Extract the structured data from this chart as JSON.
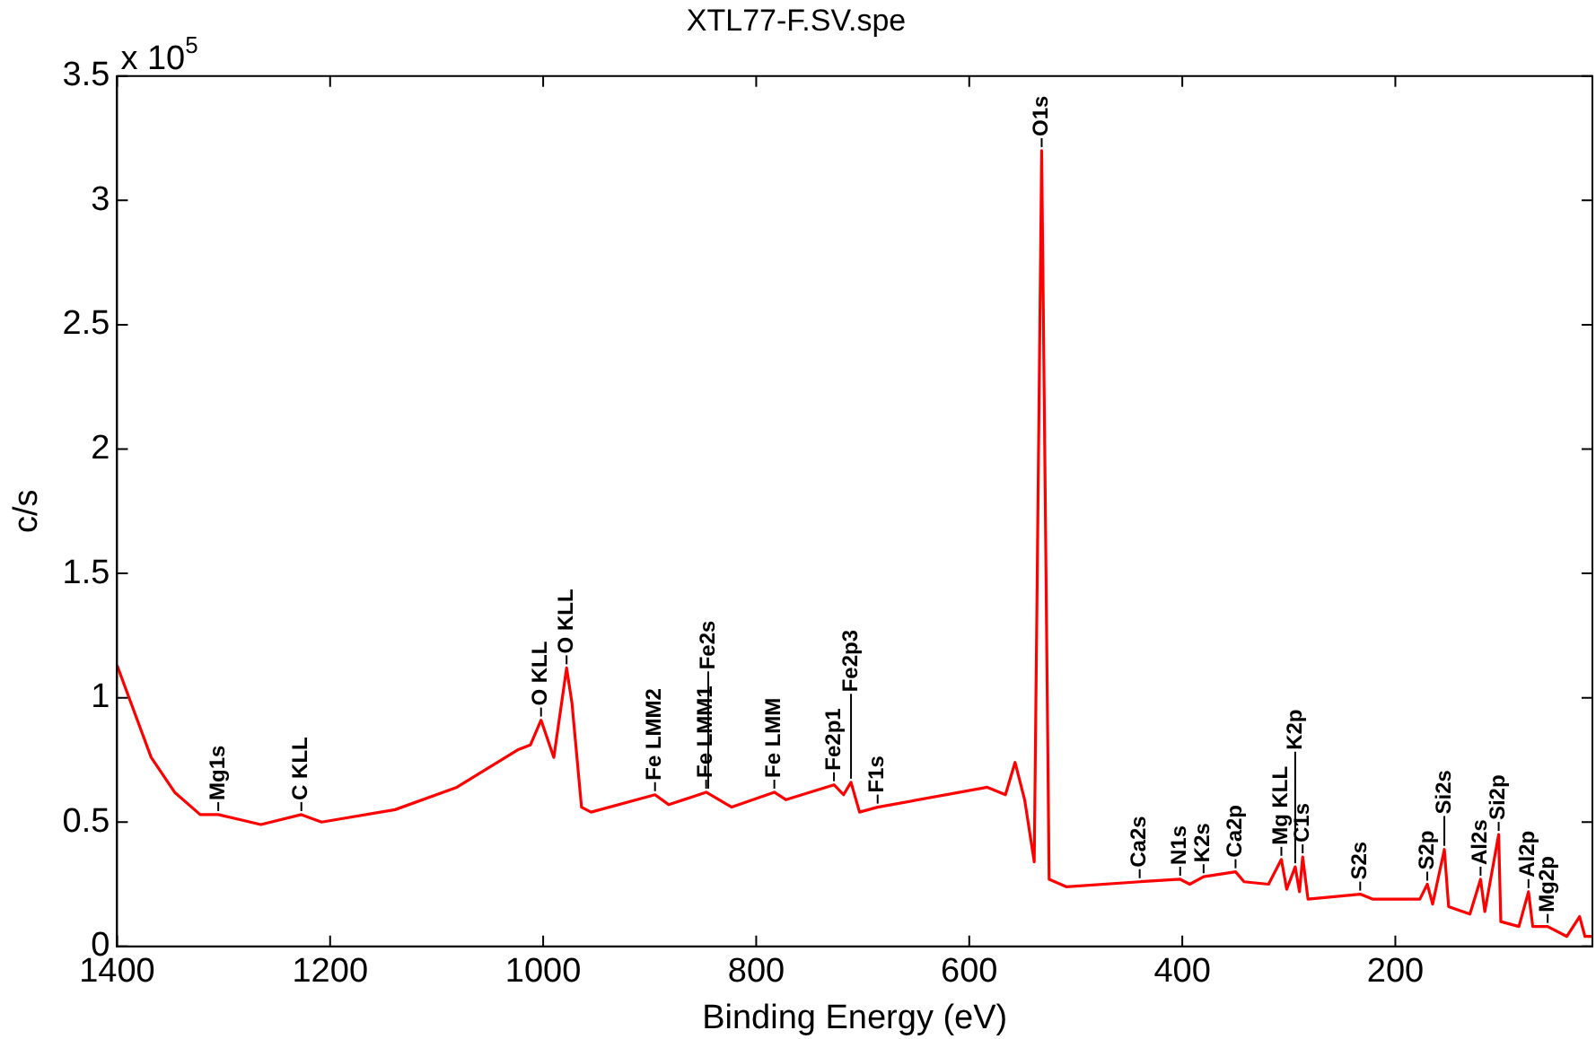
{
  "chart_data": {
    "type": "line",
    "title": "XTL77-F.SV.spe",
    "xlabel": "Binding Energy (eV)",
    "ylabel": "c/s",
    "x": [
      1400,
      1368,
      1346,
      1322,
      1305,
      1265,
      1227,
      1208,
      1139,
      1081,
      1024,
      1012,
      1002,
      990,
      978,
      973,
      964,
      955,
      895,
      882,
      847,
      823,
      783,
      772,
      727,
      718,
      711,
      703,
      686,
      583,
      566,
      557,
      548,
      539,
      532,
      525,
      509,
      440,
      402,
      393,
      380,
      350,
      342,
      319,
      307,
      302,
      294,
      290,
      287,
      282,
      233,
      221,
      177,
      170,
      165,
      154,
      150,
      130,
      120,
      116,
      103,
      101,
      84,
      75,
      71,
      57,
      39,
      27,
      22,
      15
    ],
    "series": [
      {
        "color": "#ff0000",
        "values": [
          1.13,
          0.76,
          0.62,
          0.53,
          0.53,
          0.49,
          0.53,
          0.5,
          0.55,
          0.64,
          0.79,
          0.81,
          0.91,
          0.76,
          1.12,
          0.98,
          0.56,
          0.54,
          0.61,
          0.57,
          0.62,
          0.56,
          0.62,
          0.59,
          0.65,
          0.61,
          0.66,
          0.54,
          0.56,
          0.64,
          0.61,
          0.74,
          0.59,
          0.34,
          3.2,
          0.27,
          0.24,
          0.26,
          0.27,
          0.25,
          0.28,
          0.3,
          0.26,
          0.25,
          0.35,
          0.23,
          0.32,
          0.22,
          0.36,
          0.19,
          0.21,
          0.19,
          0.19,
          0.25,
          0.17,
          0.39,
          0.16,
          0.13,
          0.27,
          0.14,
          0.45,
          0.1,
          0.08,
          0.22,
          0.08,
          0.08,
          0.04,
          0.12,
          0.04,
          0.04
        ]
      }
    ],
    "xlim": [
      1400,
      15
    ],
    "xticks": [
      1400,
      1200,
      1000,
      800,
      600,
      400,
      200
    ],
    "ylim": [
      0,
      3.5
    ],
    "yticks": [
      0,
      0.5,
      1,
      1.5,
      2,
      2.5,
      3,
      3.5
    ],
    "grid": false,
    "legend": false,
    "marker": "none",
    "line_style": "solid",
    "annotations": [
      "x 10$^{5}$",
      {
        "text": "Mg1s",
        "x": 1305,
        "y": 0.53
      },
      {
        "text": "C KLL",
        "x": 1227,
        "y": 0.53
      },
      {
        "text": "O KLL",
        "x": 1002,
        "y": 0.91
      },
      {
        "text": "O KLL",
        "x": 978,
        "y": 1.12
      },
      {
        "text": "Fe LMM2",
        "x": 895,
        "y": 0.61
      },
      {
        "text": "Fe LMM1",
        "x": 847,
        "y": 0.62
      },
      {
        "text": "Fe2s",
        "x": 845,
        "y": 0.62
      },
      {
        "text": "Fe LMM",
        "x": 783,
        "y": 0.62
      },
      {
        "text": "Fe2p1",
        "x": 727,
        "y": 0.65
      },
      {
        "text": "Fe2p3",
        "x": 711,
        "y": 0.66
      },
      {
        "text": "F1s",
        "x": 686,
        "y": 0.56
      },
      {
        "text": "O1s",
        "x": 532,
        "y": 3.2
      },
      {
        "text": "Ca2s",
        "x": 440,
        "y": 0.26
      },
      {
        "text": "N1s",
        "x": 402,
        "y": 0.27
      },
      {
        "text": "K2s",
        "x": 380,
        "y": 0.28
      },
      {
        "text": "Ca2p",
        "x": 350,
        "y": 0.3
      },
      {
        "text": "Mg KLL",
        "x": 307,
        "y": 0.35
      },
      {
        "text": "K2p",
        "x": 294,
        "y": 0.32
      },
      {
        "text": "C1s",
        "x": 287,
        "y": 0.36
      },
      {
        "text": "S2s",
        "x": 233,
        "y": 0.21
      },
      {
        "text": "S2p",
        "x": 170,
        "y": 0.25
      },
      {
        "text": "Si2s",
        "x": 154,
        "y": 0.39
      },
      {
        "text": "Al2s",
        "x": 120,
        "y": 0.27
      },
      {
        "text": "Si2p",
        "x": 103,
        "y": 0.45
      },
      {
        "text": "Al2p",
        "x": 75,
        "y": 0.22
      },
      {
        "text": "Mg2p",
        "x": 57,
        "y": 0.08
      }
    ]
  }
}
